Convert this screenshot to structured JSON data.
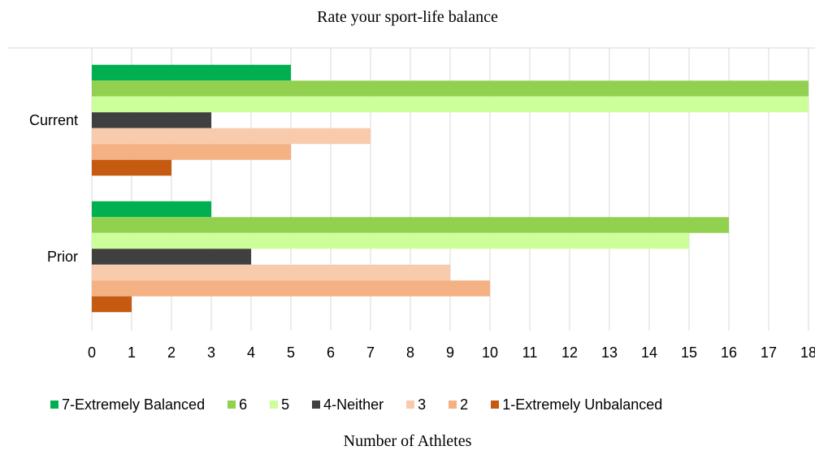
{
  "chart_data": {
    "type": "bar",
    "orientation": "horizontal",
    "title": "Rate your sport-life balance",
    "xlabel": "Number of Athletes",
    "ylabel": "",
    "categories": [
      "Current",
      "Prior"
    ],
    "xlim": [
      0,
      18
    ],
    "x_ticks": [
      0,
      1,
      2,
      3,
      4,
      5,
      6,
      7,
      8,
      9,
      10,
      11,
      12,
      13,
      14,
      15,
      16,
      17,
      18
    ],
    "grid": true,
    "legend_position": "bottom",
    "series": [
      {
        "name": "7-Extremely Balanced",
        "color": "#00b050",
        "values": [
          5,
          3
        ]
      },
      {
        "name": "6",
        "color": "#92d050",
        "values": [
          18,
          16
        ]
      },
      {
        "name": "5",
        "color": "#ccff99",
        "values": [
          18,
          15
        ]
      },
      {
        "name": "4-Neither",
        "color": "#404040",
        "values": [
          3,
          4
        ]
      },
      {
        "name": "3",
        "color": "#f8cbad",
        "values": [
          7,
          9
        ]
      },
      {
        "name": "2",
        "color": "#f4b183",
        "values": [
          5,
          10
        ]
      },
      {
        "name": "1-Extremely Unbalanced",
        "color": "#c55a11",
        "values": [
          2,
          1
        ]
      }
    ]
  }
}
